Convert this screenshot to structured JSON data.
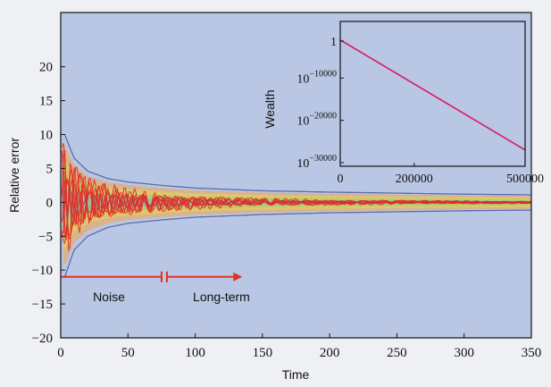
{
  "chart_data": [
    {
      "type": "line",
      "xlabel": "Time",
      "ylabel": "Relative error",
      "xlim": [
        0,
        350
      ],
      "ylim": [
        -20,
        28
      ],
      "xticks": [
        0,
        50,
        100,
        150,
        200,
        250,
        300,
        350
      ],
      "yticks": [
        -20,
        -15,
        -10,
        -5,
        0,
        5,
        10,
        15,
        20
      ],
      "xtick_labels": [
        "0",
        "50",
        "100",
        "150",
        "200",
        "250",
        "300",
        "350"
      ],
      "ytick_labels": [
        "−20",
        "−15",
        "−10",
        "−5",
        "0",
        "5",
        "10",
        "15",
        "20"
      ],
      "grid": false,
      "envelope": {
        "upper": {
          "x": [
            3,
            10,
            20,
            35,
            50,
            75,
            100,
            150,
            200,
            250,
            300,
            350
          ],
          "y": [
            10,
            6.5,
            4.6,
            3.5,
            3.0,
            2.5,
            2.1,
            1.7,
            1.5,
            1.35,
            1.2,
            1.1
          ]
        },
        "lower": {
          "x": [
            3,
            10,
            20,
            35,
            50,
            75,
            100,
            150,
            200,
            250,
            300,
            350
          ],
          "y": [
            -11,
            -7.0,
            -5.0,
            -3.7,
            -3.1,
            -2.6,
            -2.2,
            -1.8,
            -1.55,
            -1.4,
            -1.25,
            -1.15
          ]
        }
      },
      "noise_traces_color": "#e02a2a",
      "band_colors": [
        "#f2a24a",
        "#e7d84a",
        "#9fcf6a",
        "#6fc0c7"
      ],
      "annotations": {
        "arrow_y": -11,
        "noise_label": "Noise",
        "longterm_label": "Long-term",
        "break_x": 77,
        "arrow_end_x": 135
      }
    },
    {
      "type": "line",
      "inset": true,
      "xlabel": "",
      "ylabel": "Wealth",
      "xlim": [
        0,
        500000
      ],
      "log_exponent_range": [
        -30000,
        0
      ],
      "xtick_labels": [
        "0",
        "200000",
        "500000"
      ],
      "xticks": [
        0,
        200000,
        500000
      ],
      "ytick_labels": [
        {
          "base": "1",
          "exp": ""
        },
        {
          "base": "10",
          "exp": "−10000"
        },
        {
          "base": "10",
          "exp": "−20000"
        },
        {
          "base": "10",
          "exp": "−30000"
        }
      ],
      "series": [
        {
          "x": [
            0,
            500000
          ],
          "log10_y": [
            -1000,
            -27000
          ],
          "color": "#d61c5f"
        }
      ]
    }
  ],
  "colors": {
    "plot_bg": "#b9c7e4",
    "frame": "#111111",
    "envelope": "#5b6cae",
    "arrow": "#e23020"
  }
}
